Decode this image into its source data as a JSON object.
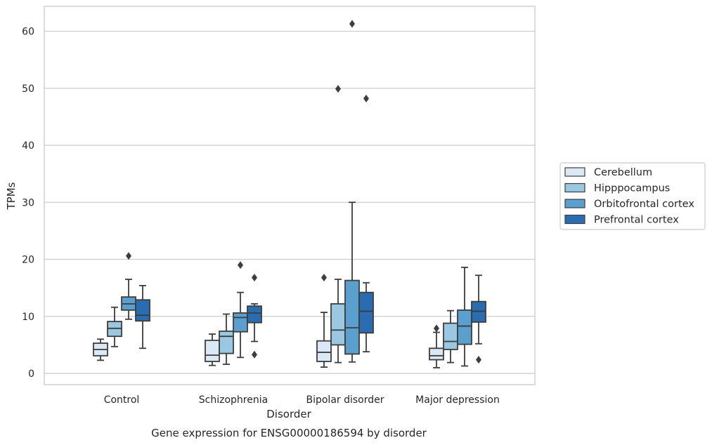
{
  "chart_data": {
    "type": "box",
    "title": "Gene expression for ENSG00000186594 by disorder",
    "xlabel": "Disorder",
    "ylabel": "TPMs",
    "ylim": [
      -2,
      64
    ],
    "yticks": [
      0,
      10,
      20,
      30,
      40,
      50,
      60
    ],
    "grid": "horizontal",
    "legend_position": "right",
    "categories": [
      "Control",
      "Schizophrenia",
      "Bipolar disorder",
      "Major depression"
    ],
    "series": [
      {
        "name": "Cerebellum",
        "color": "#dbe9f6",
        "boxes": [
          {
            "whisker_low": 2.3,
            "q1": 3.1,
            "median": 4.2,
            "q3": 5.3,
            "whisker_high": 6.0,
            "outliers": []
          },
          {
            "whisker_low": 1.4,
            "q1": 2.1,
            "median": 3.2,
            "q3": 5.8,
            "whisker_high": 6.9,
            "outliers": []
          },
          {
            "whisker_low": 1.1,
            "q1": 2.1,
            "median": 3.7,
            "q3": 5.7,
            "whisker_high": 10.7,
            "outliers": [
              16.8
            ]
          },
          {
            "whisker_low": 1.0,
            "q1": 2.4,
            "median": 3.1,
            "q3": 4.4,
            "whisker_high": 7.2,
            "outliers": [
              7.9
            ]
          }
        ]
      },
      {
        "name": "Hipppocampus",
        "color": "#9ac8e0",
        "boxes": [
          {
            "whisker_low": 4.7,
            "q1": 6.5,
            "median": 7.9,
            "q3": 9.1,
            "whisker_high": 11.6,
            "outliers": []
          },
          {
            "whisker_low": 1.6,
            "q1": 3.5,
            "median": 6.5,
            "q3": 7.4,
            "whisker_high": 10.4,
            "outliers": []
          },
          {
            "whisker_low": 1.9,
            "q1": 5.0,
            "median": 7.6,
            "q3": 12.2,
            "whisker_high": 16.5,
            "outliers": [
              49.9
            ]
          },
          {
            "whisker_low": 1.9,
            "q1": 4.2,
            "median": 5.6,
            "q3": 8.8,
            "whisker_high": 11.0,
            "outliers": []
          }
        ]
      },
      {
        "name": "Orbitofrontal cortex",
        "color": "#5a9fcd",
        "boxes": [
          {
            "whisker_low": 9.5,
            "q1": 11.1,
            "median": 12.2,
            "q3": 13.4,
            "whisker_high": 16.5,
            "outliers": [
              20.6
            ]
          },
          {
            "whisker_low": 2.8,
            "q1": 7.3,
            "median": 9.8,
            "q3": 10.6,
            "whisker_high": 14.2,
            "outliers": [
              19.0
            ]
          },
          {
            "whisker_low": 2.0,
            "q1": 3.4,
            "median": 8.0,
            "q3": 16.3,
            "whisker_high": 30.0,
            "outliers": [
              61.3
            ]
          },
          {
            "whisker_low": 1.3,
            "q1": 5.1,
            "median": 8.3,
            "q3": 11.1,
            "whisker_high": 18.6,
            "outliers": []
          }
        ]
      },
      {
        "name": "Prefrontal cortex",
        "color": "#2a6cb0",
        "boxes": [
          {
            "whisker_low": 4.4,
            "q1": 9.2,
            "median": 10.2,
            "q3": 12.9,
            "whisker_high": 15.4,
            "outliers": []
          },
          {
            "whisker_low": 5.6,
            "q1": 8.9,
            "median": 10.6,
            "q3": 11.8,
            "whisker_high": 12.2,
            "outliers": [
              3.3,
              16.8
            ]
          },
          {
            "whisker_low": 3.8,
            "q1": 7.1,
            "median": 10.9,
            "q3": 14.2,
            "whisker_high": 15.9,
            "outliers": [
              48.2
            ]
          },
          {
            "whisker_low": 5.2,
            "q1": 9.0,
            "median": 10.9,
            "q3": 12.6,
            "whisker_high": 17.2,
            "outliers": [
              2.4
            ]
          }
        ]
      }
    ]
  }
}
